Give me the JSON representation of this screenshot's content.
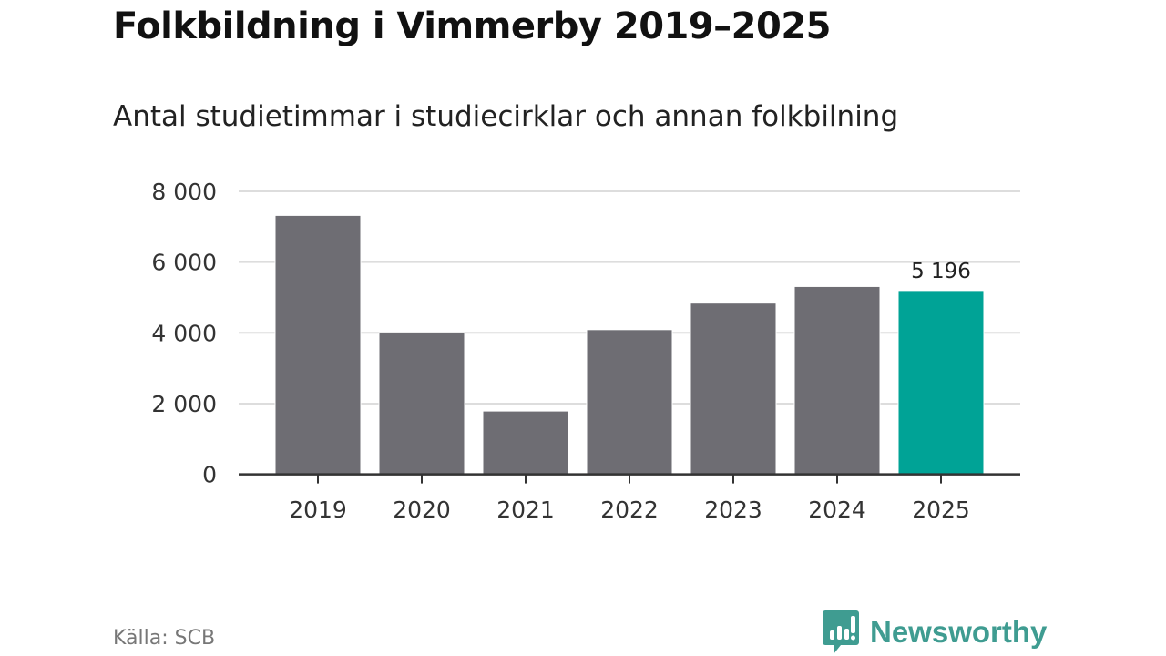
{
  "chart_data": {
    "type": "bar",
    "title": "Folkbildning i Vimmerby 2019–2025",
    "subtitle": "Antal studietimmar i studiecirklar och annan folkbilning",
    "categories": [
      "2019",
      "2020",
      "2021",
      "2022",
      "2023",
      "2024",
      "2025"
    ],
    "values": [
      7320,
      4000,
      1790,
      4090,
      4840,
      5310,
      5196
    ],
    "highlight_index": 6,
    "data_labels": [
      {
        "index": 6,
        "text": "5 196"
      }
    ],
    "ylim": [
      0,
      8000
    ],
    "yticks": [
      0,
      2000,
      4000,
      6000,
      8000
    ],
    "ytick_labels": [
      "0",
      "2 000",
      "4 000",
      "6 000",
      "8 000"
    ],
    "xlabel": "",
    "ylabel": "",
    "grid": true,
    "colors": {
      "bar": "#6e6d73",
      "highlight": "#00a396",
      "grid": "#dddddd",
      "axis": "#333333"
    }
  },
  "source": "Källa: SCB",
  "brand": "Newsworthy"
}
